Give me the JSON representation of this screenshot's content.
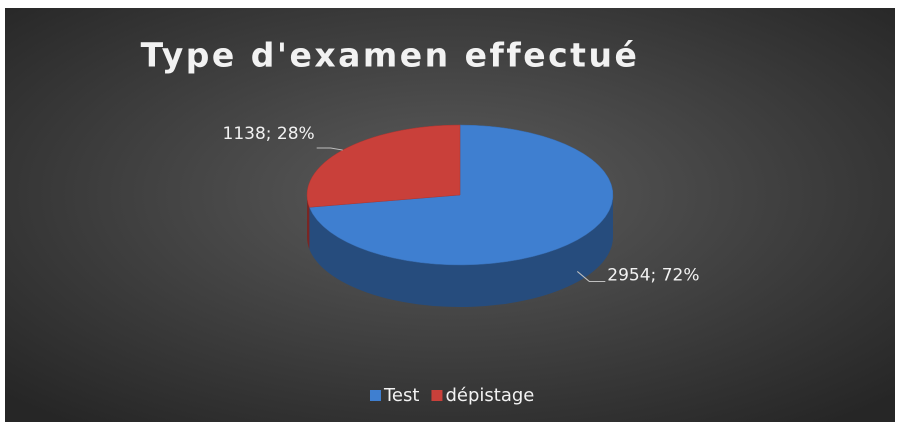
{
  "chart_data": {
    "type": "pie",
    "title": "Type d'examen effectué",
    "categories": [
      "Test",
      "dépistage"
    ],
    "values": [
      2954,
      1138
    ],
    "value_labels": [
      "2954; 72%",
      "1138; 28%"
    ],
    "colors": [
      "#3f7fd0",
      "#c9403a"
    ],
    "legend": "bottom"
  }
}
